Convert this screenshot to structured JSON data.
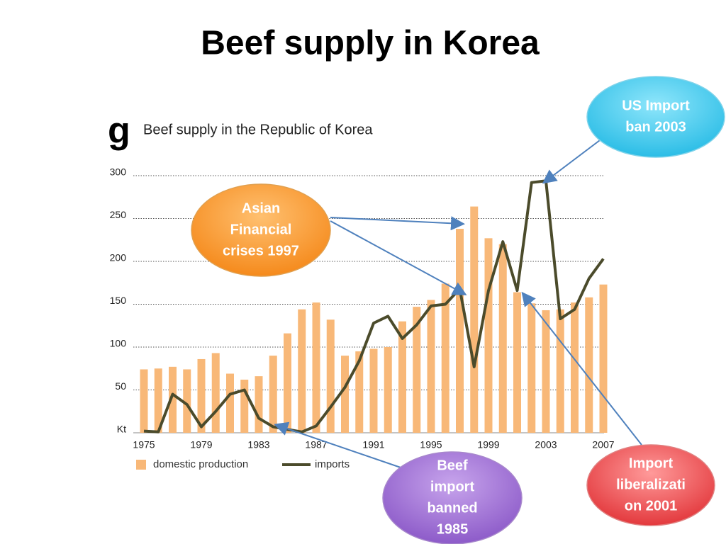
{
  "title": "Beef supply in Korea",
  "chart_data": {
    "type": "bar_line",
    "label": "g",
    "title": "Beef supply in the Republic of Korea",
    "x": [
      1975,
      1976,
      1977,
      1978,
      1979,
      1980,
      1981,
      1982,
      1983,
      1984,
      1985,
      1986,
      1987,
      1988,
      1989,
      1990,
      1991,
      1992,
      1993,
      1994,
      1995,
      1996,
      1997,
      1998,
      1999,
      2000,
      2001,
      2002,
      2003,
      2004,
      2005,
      2006,
      2007
    ],
    "xlim": [
      1975,
      2007
    ],
    "xticks": [
      1975,
      1979,
      1983,
      1987,
      1991,
      1995,
      1999,
      2003,
      2007
    ],
    "ylim": [
      0,
      300
    ],
    "yticks": [
      {
        "value": 0,
        "label": "Kt"
      },
      50,
      100,
      150,
      200,
      250,
      300
    ],
    "grid": true,
    "series": [
      {
        "name": "domestic production",
        "type": "bar",
        "color": "#f8b878",
        "values": [
          74,
          75,
          77,
          74,
          86,
          93,
          69,
          62,
          66,
          90,
          116,
          144,
          152,
          132,
          90,
          95,
          98,
          100,
          130,
          147,
          155,
          174,
          238,
          264,
          227,
          220,
          164,
          151,
          143,
          144,
          152,
          158,
          173
        ]
      },
      {
        "name": "imports",
        "type": "line",
        "color": "#4b4b2b",
        "values": [
          2,
          1,
          45,
          33,
          7,
          25,
          45,
          50,
          17,
          7,
          4,
          1,
          8,
          30,
          53,
          84,
          128,
          136,
          110,
          126,
          148,
          150,
          168,
          77,
          166,
          223,
          166,
          292,
          294,
          133,
          144,
          180,
          203
        ]
      }
    ]
  },
  "annotations": [
    {
      "lines": [
        "US Import",
        "ban 2003"
      ]
    },
    {
      "lines": [
        "Asian",
        "Financial",
        "crises 1997"
      ]
    },
    {
      "lines": [
        "Beef",
        "import",
        "banned",
        "1985"
      ]
    },
    {
      "lines": [
        "Import",
        "liberalizati",
        "on 2001"
      ]
    }
  ]
}
